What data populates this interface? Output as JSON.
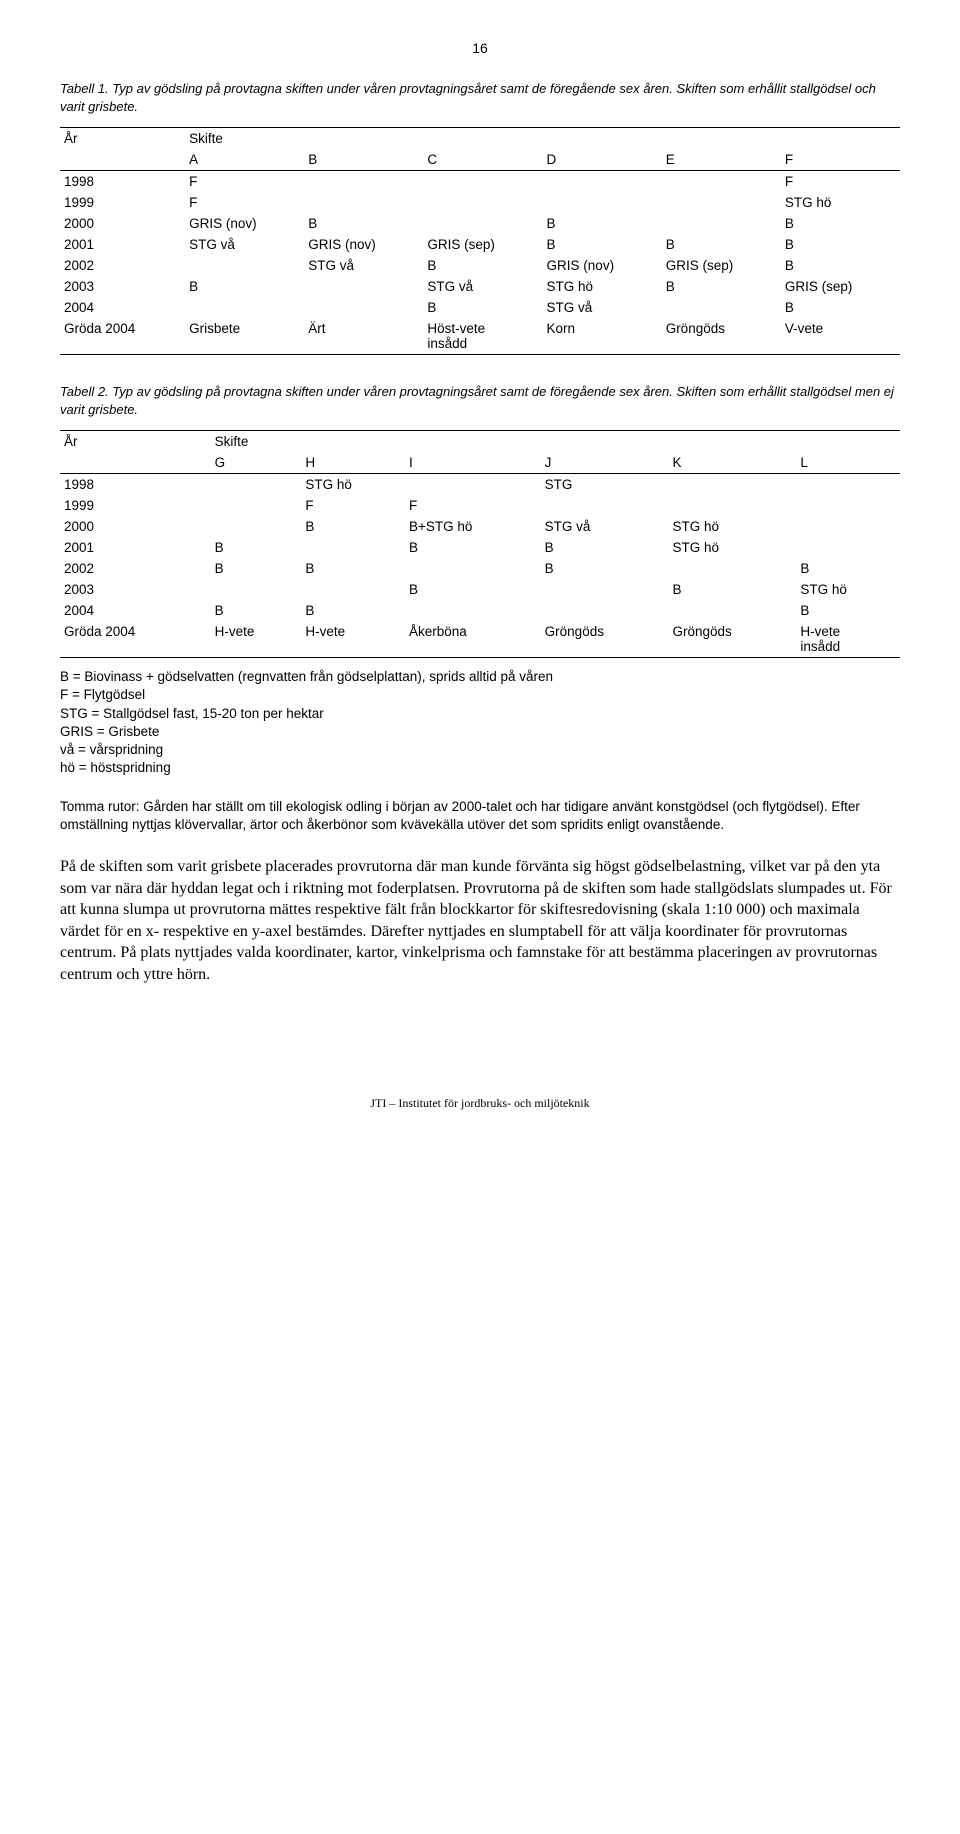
{
  "page_number": "16",
  "table1": {
    "caption": "Tabell 1. Typ av gödsling på provtagna skiften under våren provtagningsåret samt de föregående sex åren. Skiften som erhållit stallgödsel och varit grisbete.",
    "head_year": "År",
    "head_skifte": "Skifte",
    "cols": [
      "A",
      "B",
      "C",
      "D",
      "E",
      "F"
    ],
    "rows": [
      {
        "y": "1998",
        "c": [
          "F",
          "",
          "",
          "",
          "",
          "F"
        ]
      },
      {
        "y": "1999",
        "c": [
          "F",
          "",
          "",
          "",
          "",
          "STG hö"
        ]
      },
      {
        "y": "2000",
        "c": [
          "GRIS (nov)",
          "B",
          "",
          "B",
          "",
          "B"
        ]
      },
      {
        "y": "2001",
        "c": [
          "STG vå",
          "GRIS (nov)",
          "GRIS (sep)",
          "B",
          "B",
          "B"
        ]
      },
      {
        "y": "2002",
        "c": [
          "",
          "STG vå",
          "B",
          "GRIS (nov)",
          "GRIS (sep)",
          "B"
        ]
      },
      {
        "y": "2003",
        "c": [
          "B",
          "",
          "STG vå",
          "STG hö",
          "B",
          "GRIS (sep)"
        ]
      },
      {
        "y": "2004",
        "c": [
          "",
          "",
          "B",
          "STG vå",
          "",
          "B"
        ]
      }
    ],
    "crop_row": {
      "y": "Gröda 2004",
      "c": [
        "Grisbete",
        "Ärt",
        "Höst-vete insådd",
        "Korn",
        "Gröngöds",
        "V-vete"
      ]
    }
  },
  "table2": {
    "caption": "Tabell 2. Typ av gödsling på provtagna skiften under våren provtagningsåret samt de föregående sex åren. Skiften som erhållit stallgödsel men ej varit grisbete.",
    "head_year": "År",
    "head_skifte": "Skifte",
    "cols": [
      "G",
      "H",
      "I",
      "J",
      "K",
      "L"
    ],
    "rows": [
      {
        "y": "1998",
        "c": [
          "",
          "STG hö",
          "",
          "STG",
          "",
          ""
        ]
      },
      {
        "y": "1999",
        "c": [
          "",
          "F",
          "F",
          "",
          "",
          ""
        ]
      },
      {
        "y": "2000",
        "c": [
          "",
          "B",
          "B+STG hö",
          "STG vå",
          "STG hö",
          ""
        ]
      },
      {
        "y": "2001",
        "c": [
          "B",
          "",
          "B",
          "B",
          "STG hö",
          ""
        ]
      },
      {
        "y": "2002",
        "c": [
          "B",
          "B",
          "",
          "B",
          "",
          "B"
        ]
      },
      {
        "y": "2003",
        "c": [
          "",
          "",
          "B",
          "",
          "B",
          "STG hö"
        ]
      },
      {
        "y": "2004",
        "c": [
          "B",
          "B",
          "",
          "",
          "",
          "B"
        ]
      }
    ],
    "crop_row": {
      "y": "Gröda 2004",
      "c": [
        "H-vete",
        "H-vete",
        "Åkerböna",
        "Gröngöds",
        "Gröngöds",
        "H-vete insådd"
      ]
    }
  },
  "legend": [
    "B = Biovinass + gödselvatten (regnvatten från gödselplattan), sprids alltid på våren",
    "F = Flytgödsel",
    "STG = Stallgödsel fast, 15-20 ton per hektar",
    "GRIS = Grisbete",
    "vå = vårspridning",
    "hö = höstspridning"
  ],
  "note": "Tomma rutor: Gården har ställt om till ekologisk odling i början av 2000-talet och har tidigare använt konstgödsel (och flytgödsel). Efter omställning nyttjas klövervallar, ärtor och åkerbönor som kvävekälla utöver det som spridits enligt ovanstående.",
  "para": "På de skiften som varit grisbete placerades provrutorna där man kunde förvänta sig högst gödselbelastning, vilket var på den yta som var nära där hyddan legat och i riktning mot foderplatsen. Provrutorna på de skiften som hade stallgödslats slumpades ut. För att kunna slumpa ut provrutorna mättes respektive fält från blockkartor för skiftesredovisning (skala 1:10 000) och maximala värdet för en x- respektive en y-axel bestämdes. Därefter nyttjades en slumptabell för att välja koordinater för provrutornas centrum. På plats nyttjades valda koordinater, kartor, vinkelprisma och famnstake för att bestämma placeringen av provrutornas centrum och yttre hörn.",
  "footer": "JTI – Institutet för jordbruks- och miljöteknik"
}
